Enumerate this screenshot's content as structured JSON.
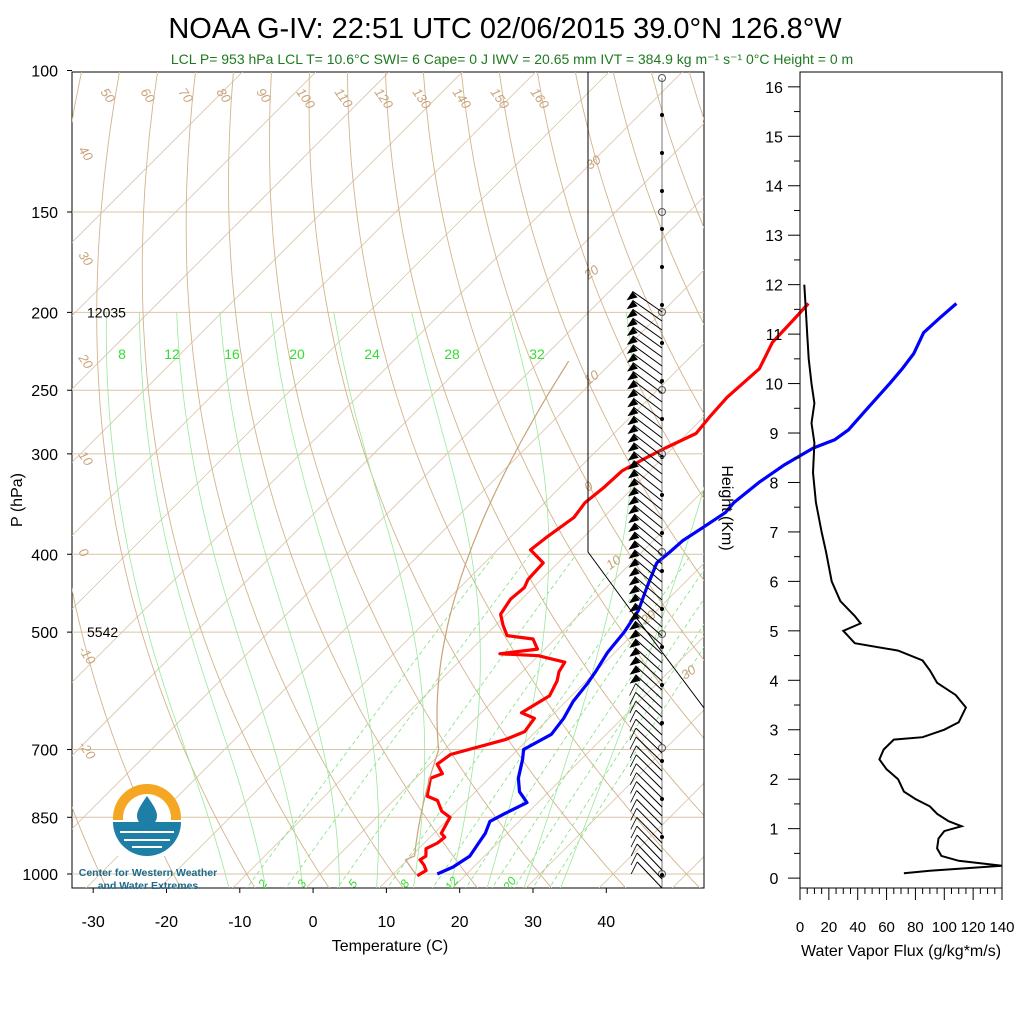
{
  "title": "NOAA G-IV: 22:51 UTC 02/06/2015  39.0°N 126.8°W",
  "subtitle": "LCL P= 953 hPa  LCL T= 10.6°C  SWI= 6  Cape= 0 J  IWV = 20.65 mm  IVT = 384.9 kg m⁻¹ s⁻¹  0°C Height = 0 m",
  "logo_text": [
    "Center for Western Weather",
    "and Water Extremes"
  ],
  "colors": {
    "temperature": "#ff0000",
    "dewpoint": "#0000ff",
    "dry_adiabat": "#d2b48c",
    "mixing_ratio": "#33dd33",
    "moist_adiabat": "#33dd33",
    "flux": "#000000"
  },
  "chart_data": [
    {
      "type": "line",
      "title": "NOAA G-IV: 22:51 UTC 02/06/2015  39.0°N 126.8°W",
      "xlabel": "Temperature (C)",
      "ylabel": "P (hPa)",
      "xlim": [
        -35,
        48
      ],
      "ylim": [
        1020,
        100
      ],
      "y_scale": "log",
      "x_ticks": [
        "-30",
        "-20",
        "-10",
        "0",
        "10",
        "20",
        "30",
        "40"
      ],
      "y_ticks": [
        "100",
        "150",
        "200",
        "250",
        "300",
        "400",
        "500",
        "700",
        "850",
        "1000"
      ],
      "height_labels": [
        {
          "p": 200,
          "text": "12035"
        },
        {
          "p": 500,
          "text": "5542"
        }
      ],
      "dry_adiabat_labels": [
        "50",
        "60",
        "70",
        "80",
        "90",
        "100",
        "110",
        "120",
        "130",
        "140",
        "150",
        "160",
        "40",
        "30",
        "20",
        "10",
        "0",
        "-10",
        "-20"
      ],
      "moist_adiabat_labels": [
        "30",
        "20",
        "10",
        "0",
        "10",
        "20",
        "30"
      ],
      "mixing_ratio_labels": [
        "8",
        "12",
        "16",
        "20",
        "24",
        "28",
        "32"
      ],
      "mixing_ratio_low_labels": [
        "2",
        "3",
        "5",
        "8",
        "12",
        "20"
      ],
      "series": [
        {
          "name": "Temperature",
          "points": [
            [
              -11.2,
              195
            ],
            [
              -11.0,
              205
            ],
            [
              -10.8,
              218
            ],
            [
              -9.0,
              235
            ],
            [
              -9.5,
              255
            ],
            [
              -9.2,
              270
            ],
            [
              -8.8,
              283
            ],
            [
              -11,
              295
            ],
            [
              -12.5,
              305
            ],
            [
              -13.8,
              315
            ],
            [
              -14,
              330
            ],
            [
              -14.5,
              345
            ],
            [
              -14,
              360
            ],
            [
              -15,
              380
            ],
            [
              -15.5,
              395
            ],
            [
              -12,
              410
            ],
            [
              -11.8,
              430
            ],
            [
              -11.2,
              440
            ],
            [
              -11.5,
              455
            ],
            [
              -10.8,
              475
            ],
            [
              -9,
              490
            ],
            [
              -7,
              505
            ],
            [
              -3,
              510
            ],
            [
              -1,
              525
            ],
            [
              -5.5,
              532
            ],
            [
              0,
              535
            ],
            [
              4.5,
              545
            ],
            [
              5,
              560
            ],
            [
              6,
              575
            ],
            [
              7,
              600
            ],
            [
              5.5,
              630
            ],
            [
              8,
              640
            ],
            [
              8.5,
              665
            ],
            [
              7,
              680
            ],
            [
              1.5,
              710
            ],
            [
              1,
              730
            ],
            [
              3,
              750
            ],
            [
              2,
              760
            ],
            [
              3,
              780
            ],
            [
              4,
              800
            ],
            [
              6,
              810
            ],
            [
              8,
              835
            ],
            [
              10,
              850
            ],
            [
              10.5,
              870
            ],
            [
              11,
              890
            ],
            [
              12,
              900
            ],
            [
              11.8,
              915
            ],
            [
              11,
              930
            ],
            [
              12,
              950
            ],
            [
              11.7,
              960
            ],
            [
              13,
              975
            ],
            [
              14,
              990
            ],
            [
              13.5,
              1005
            ]
          ]
        },
        {
          "name": "Dewpoint",
          "points": [
            [
              9,
              195
            ],
            [
              8.7,
              203
            ],
            [
              8.5,
              212
            ],
            [
              10,
              225
            ],
            [
              10.5,
              235
            ],
            [
              10.8,
              245
            ],
            [
              11,
              255
            ],
            [
              11.2,
              265
            ],
            [
              11.5,
              280
            ],
            [
              11,
              288
            ],
            [
              9.2,
              295
            ],
            [
              7.5,
              310
            ],
            [
              6.5,
              325
            ],
            [
              5.8,
              345
            ],
            [
              6,
              355
            ],
            [
              5,
              370
            ],
            [
              4,
              385
            ],
            [
              3.8,
              398
            ],
            [
              3.5,
              410
            ],
            [
              5.5,
              440
            ],
            [
              7.5,
              470
            ],
            [
              8.5,
              500
            ],
            [
              9,
              530
            ],
            [
              10,
              560
            ],
            [
              10.5,
              580
            ],
            [
              11,
              610
            ],
            [
              12,
              640
            ],
            [
              12.5,
              670
            ],
            [
              10.8,
              700
            ],
            [
              12,
              720
            ],
            [
              14,
              760
            ],
            [
              16,
              790
            ],
            [
              18.5,
              815
            ],
            [
              17,
              840
            ],
            [
              16,
              860
            ],
            [
              17,
              890
            ],
            [
              17.5,
              920
            ],
            [
              18,
              950
            ],
            [
              17.2,
              980
            ],
            [
              16,
              1000
            ]
          ]
        }
      ]
    },
    {
      "type": "line",
      "xlabel": "Water Vapor Flux (g/kg*m/s)",
      "ylabel": "Height (Km)",
      "xlim": [
        0,
        140
      ],
      "ylim": [
        -0.2,
        16.3
      ],
      "x_ticks": [
        "0",
        "20",
        "40",
        "60",
        "80",
        "100",
        "120",
        "140"
      ],
      "y_ticks": [
        "0",
        "1",
        "2",
        "3",
        "4",
        "5",
        "6",
        "7",
        "8",
        "9",
        "10",
        "11",
        "12",
        "13",
        "14",
        "15",
        "16"
      ],
      "series": [
        {
          "name": "Water Vapor Flux",
          "points": [
            [
              3,
              12.0
            ],
            [
              4,
              11.5
            ],
            [
              5,
              11.0
            ],
            [
              6,
              10.5
            ],
            [
              8,
              10.0
            ],
            [
              10,
              9.6
            ],
            [
              8,
              9.2
            ],
            [
              10,
              8.8
            ],
            [
              9,
              8.2
            ],
            [
              11,
              7.6
            ],
            [
              15,
              7.0
            ],
            [
              18,
              6.6
            ],
            [
              22,
              6.0
            ],
            [
              28,
              5.6
            ],
            [
              38,
              5.3
            ],
            [
              42,
              5.15
            ],
            [
              30,
              5.0
            ],
            [
              38,
              4.75
            ],
            [
              68,
              4.6
            ],
            [
              85,
              4.4
            ],
            [
              90,
              4.2
            ],
            [
              95,
              3.95
            ],
            [
              108,
              3.7
            ],
            [
              115,
              3.45
            ],
            [
              110,
              3.15
            ],
            [
              100,
              3.0
            ],
            [
              85,
              2.85
            ],
            [
              65,
              2.8
            ],
            [
              58,
              2.6
            ],
            [
              55,
              2.4
            ],
            [
              60,
              2.2
            ],
            [
              68,
              2.0
            ],
            [
              72,
              1.75
            ],
            [
              80,
              1.6
            ],
            [
              90,
              1.45
            ],
            [
              95,
              1.3
            ],
            [
              103,
              1.15
            ],
            [
              112,
              1.05
            ],
            [
              100,
              0.95
            ],
            [
              96,
              0.8
            ],
            [
              95,
              0.6
            ],
            [
              98,
              0.45
            ],
            [
              110,
              0.35
            ],
            [
              140,
              0.25
            ],
            [
              90,
              0.15
            ],
            [
              72,
              0.1
            ]
          ]
        }
      ]
    }
  ]
}
